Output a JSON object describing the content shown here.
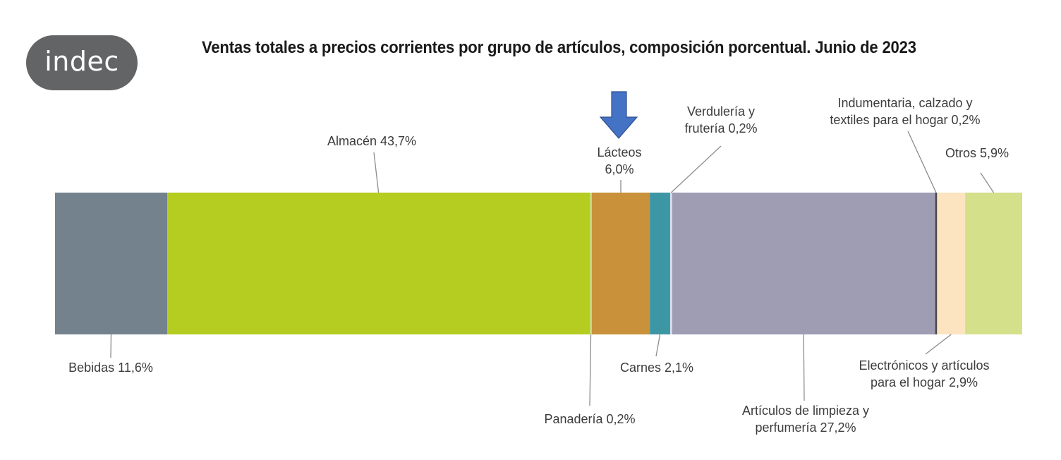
{
  "logo": {
    "text": "indec"
  },
  "colors": {
    "Bebidas": "#73828d",
    "Almacén": "#b4cd20",
    "Panadería": "#c5d977",
    "Lácteos": "#c8913a",
    "Carnes": "#3d96a3",
    "Verdulería y frutería": "#d8dfee",
    "Artículos de limpieza y perfumería": "#9e9db4",
    "Indumentaria, calzado y textiles para el hogar": "#4a4a4a",
    "Electrónicos y artículos para el hogar": "#fbe4bf",
    "Otros": "#d4e08a",
    "arrow": "#4472c4"
  },
  "chart_data": {
    "type": "bar",
    "orientation": "horizontal-stacked",
    "title": "Ventas totales a precios corrientes por grupo de artículos, composición porcentual. Junio de 2023",
    "unit": "%",
    "series": [
      {
        "name": "Bebidas",
        "value": 11.6,
        "label": "Bebidas 11,6%"
      },
      {
        "name": "Almacén",
        "value": 43.7,
        "label": "Almacén 43,7%"
      },
      {
        "name": "Panadería",
        "value": 0.2,
        "label": "Panadería 0,2%"
      },
      {
        "name": "Lácteos",
        "value": 6.0,
        "label": "Lácteos 6,0%",
        "highlighted": true
      },
      {
        "name": "Carnes",
        "value": 2.1,
        "label": "Carnes 2,1%"
      },
      {
        "name": "Verdulería y frutería",
        "value": 0.2,
        "label": "Verdulería y frutería 0,2%"
      },
      {
        "name": "Artículos de limpieza y perfumería",
        "value": 27.2,
        "label": "Artículos de limpieza y perfumería 27,2%"
      },
      {
        "name": "Indumentaria, calzado y textiles para el hogar",
        "value": 0.2,
        "label": "Indumentaria, calzado y textiles para el hogar 0,2%"
      },
      {
        "name": "Electrónicos y artículos para el hogar",
        "value": 2.9,
        "label": "Electrónicos y artículos para el hogar 2,9%"
      },
      {
        "name": "Otros",
        "value": 5.9,
        "label": "Otros 5,9%"
      }
    ]
  }
}
